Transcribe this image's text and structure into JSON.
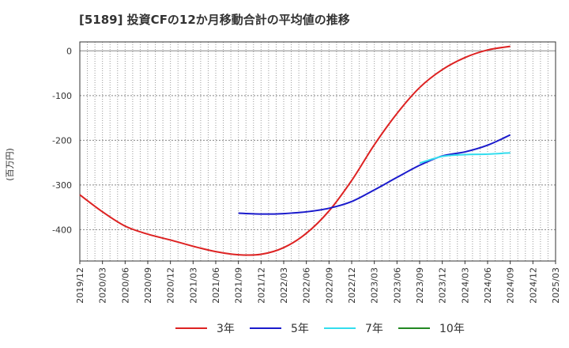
{
  "title": "[5189]  投資CFの12か月移動合計の平均値の推移",
  "chart_data": {
    "type": "line",
    "ylabel": "(百万円)",
    "ylim": [
      -470,
      20
    ],
    "yticks": [
      0,
      -100,
      -200,
      -300,
      -400
    ],
    "ytick_labels": [
      "0",
      "-100",
      "-200",
      "-300",
      "-400"
    ],
    "xticks": [
      "2019/12",
      "2020/03",
      "2020/06",
      "2020/09",
      "2020/12",
      "2021/03",
      "2021/06",
      "2021/09",
      "2021/12",
      "2022/03",
      "2022/06",
      "2022/09",
      "2022/12",
      "2023/03",
      "2023/06",
      "2023/09",
      "2023/12",
      "2024/03",
      "2024/06",
      "2024/09",
      "2024/12",
      "2025/03"
    ],
    "grid": true,
    "legend_position": "bottom",
    "series": [
      {
        "name": "3年",
        "color": "#dd2222",
        "x": [
          "2019/12",
          "2020/03",
          "2020/06",
          "2020/09",
          "2020/12",
          "2021/03",
          "2021/06",
          "2021/09",
          "2021/12",
          "2022/03",
          "2022/06",
          "2022/09",
          "2022/12",
          "2023/03",
          "2023/06",
          "2023/09",
          "2023/12",
          "2024/03",
          "2024/06",
          "2024/09"
        ],
        "values": [
          -322,
          -360,
          -392,
          -410,
          -423,
          -437,
          -449,
          -456,
          -455,
          -440,
          -408,
          -358,
          -290,
          -210,
          -140,
          -82,
          -42,
          -15,
          2,
          10
        ]
      },
      {
        "name": "5年",
        "color": "#1a1acc",
        "x": [
          "2021/09",
          "2021/12",
          "2022/03",
          "2022/06",
          "2022/09",
          "2022/12",
          "2023/03",
          "2023/06",
          "2023/09",
          "2023/12",
          "2024/03",
          "2024/06",
          "2024/09"
        ],
        "values": [
          -363,
          -365,
          -364,
          -360,
          -352,
          -337,
          -311,
          -283,
          -256,
          -235,
          -226,
          -211,
          -188
        ]
      },
      {
        "name": "7年",
        "color": "#33ddee",
        "x": [
          "2023/09",
          "2023/12",
          "2024/03",
          "2024/06",
          "2024/09"
        ],
        "values": [
          -251,
          -236,
          -232,
          -231,
          -228
        ]
      },
      {
        "name": "10年",
        "color": "#228822",
        "x": [],
        "values": []
      }
    ]
  }
}
